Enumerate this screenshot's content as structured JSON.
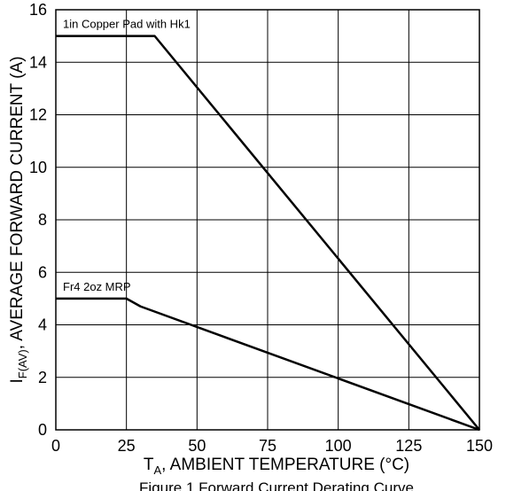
{
  "chart_data": {
    "type": "line",
    "title": "",
    "caption": "Figure 1 Forward Current Derating Curve",
    "xlabel_main": "T",
    "xlabel_sub": "A",
    "xlabel_rest": ", AMBIENT TEMPERATURE (°C)",
    "ylabel_main": "I",
    "ylabel_sub": "F(AV)",
    "ylabel_rest": ", AVERAGE FORWARD CURRENT (A)",
    "xlim": [
      0,
      150
    ],
    "ylim": [
      0,
      16
    ],
    "x_ticks": [
      "0",
      "25",
      "50",
      "75",
      "100",
      "125",
      "150"
    ],
    "y_ticks": [
      "0",
      "2",
      "4",
      "6",
      "8",
      "10",
      "12",
      "14",
      "16"
    ],
    "grid": true,
    "series": [
      {
        "name": "1in Copper Pad with Hk1",
        "x": [
          0,
          35,
          150
        ],
        "y": [
          15,
          15,
          0
        ]
      },
      {
        "name": "Fr4 2oz MRP",
        "x": [
          0,
          25,
          30,
          150
        ],
        "y": [
          5,
          5,
          4.7,
          0
        ]
      }
    ]
  }
}
